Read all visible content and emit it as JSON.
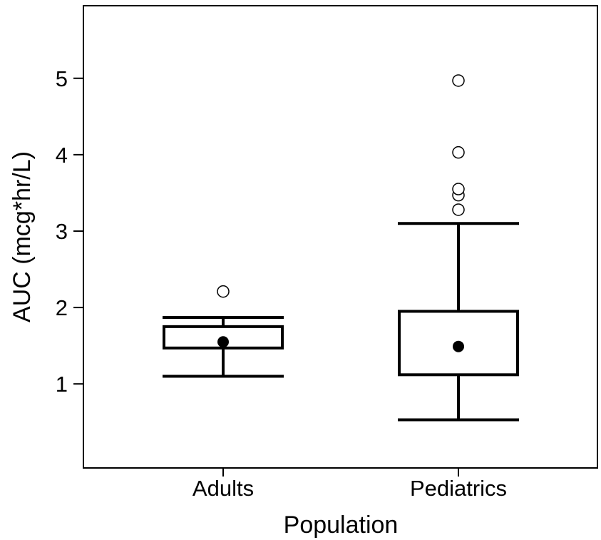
{
  "chart_data": {
    "type": "box",
    "xlabel": "Population",
    "ylabel": "AUC (mcg*hr/L)",
    "ylim": [
      -0.1,
      5.95
    ],
    "yticks": [
      1,
      2,
      3,
      4,
      5
    ],
    "grid": false,
    "categories": [
      "Adults",
      "Pediatrics"
    ],
    "boxes": [
      {
        "category": "Adults",
        "whisker_low": 1.1,
        "q1": 1.47,
        "center": 1.55,
        "q3": 1.75,
        "whisker_high": 1.87,
        "outliers": [
          2.21
        ]
      },
      {
        "category": "Pediatrics",
        "whisker_low": 0.53,
        "q1": 1.12,
        "center": 1.49,
        "q3": 1.95,
        "whisker_high": 3.1,
        "outliers": [
          3.28,
          3.47,
          3.55,
          4.03,
          4.97
        ]
      }
    ],
    "colors": {
      "stroke": "#000000",
      "background": "#ffffff",
      "center_dot": "#000000"
    }
  }
}
